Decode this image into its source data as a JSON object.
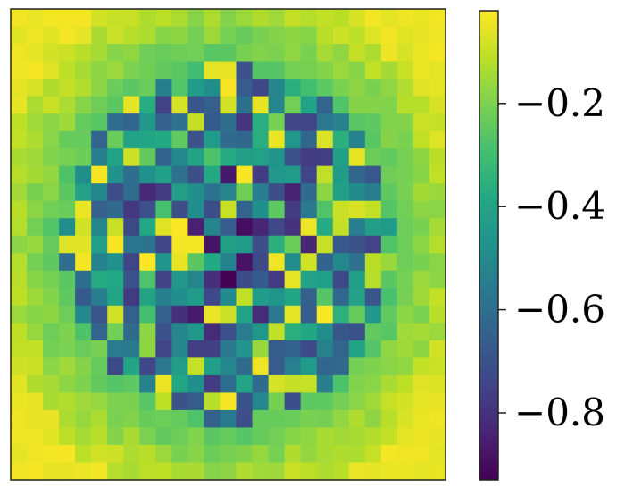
{
  "chart_data": {
    "type": "heatmap",
    "grid_size": [
      27,
      27
    ],
    "colormap": "viridis",
    "value_range": [
      -0.93,
      -0.02
    ],
    "background_color": "#fde725",
    "seed": 37,
    "colorbar": {
      "ticks": [
        -0.2,
        -0.4,
        -0.6,
        -0.8
      ],
      "tick_labels": [
        "−0.2",
        "−0.4",
        "−0.6",
        "−0.8"
      ],
      "side": "right"
    },
    "title": "",
    "xlabel": "",
    "ylabel": ""
  }
}
